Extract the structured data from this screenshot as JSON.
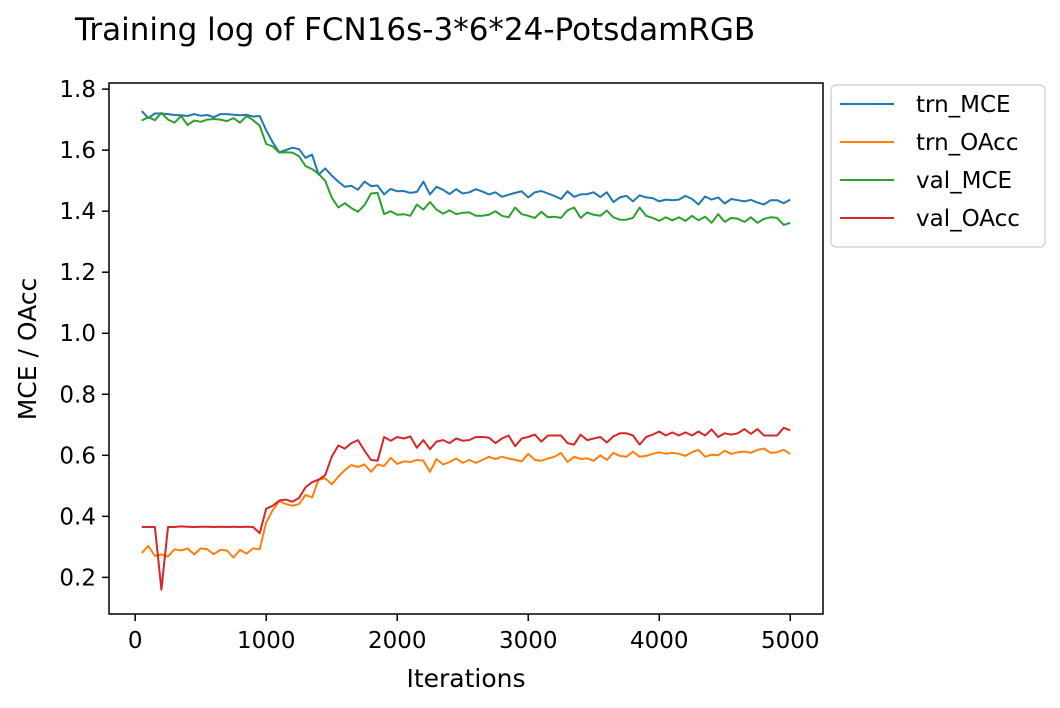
{
  "chart_data": {
    "type": "line",
    "title": "Training log of FCN16s-3*6*24-PotsdamRGB",
    "xlabel": "Iterations",
    "ylabel": "MCE / OAcc",
    "xlim": [
      -200,
      5250
    ],
    "ylim": [
      0.08,
      1.82
    ],
    "xticks": [
      0,
      1000,
      2000,
      3000,
      4000,
      5000
    ],
    "yticks": [
      0.2,
      0.4,
      0.6,
      0.8,
      1.0,
      1.2,
      1.4,
      1.6,
      1.8
    ],
    "grid": false,
    "legend_position": "outside-top-right",
    "x": [
      50,
      100,
      150,
      200,
      250,
      300,
      350,
      400,
      450,
      500,
      550,
      600,
      650,
      700,
      750,
      800,
      850,
      900,
      950,
      1000,
      1050,
      1100,
      1150,
      1200,
      1250,
      1300,
      1350,
      1400,
      1450,
      1500,
      1550,
      1600,
      1650,
      1700,
      1750,
      1800,
      1850,
      1900,
      1950,
      2000,
      2050,
      2100,
      2150,
      2200,
      2250,
      2300,
      2350,
      2400,
      2450,
      2500,
      2550,
      2600,
      2650,
      2700,
      2750,
      2800,
      2850,
      2900,
      2950,
      3000,
      3050,
      3100,
      3150,
      3200,
      3250,
      3300,
      3350,
      3400,
      3450,
      3500,
      3550,
      3600,
      3650,
      3700,
      3750,
      3800,
      3850,
      3900,
      3950,
      4000,
      4050,
      4100,
      4150,
      4200,
      4250,
      4300,
      4350,
      4400,
      4450,
      4500,
      4550,
      4600,
      4650,
      4700,
      4750,
      4800,
      4850,
      4900,
      4950,
      5000
    ],
    "series": [
      {
        "name": "trn_MCE",
        "color": "#1f77b4",
        "values": [
          1.728,
          1.705,
          1.72,
          1.72,
          1.718,
          1.715,
          1.714,
          1.712,
          1.718,
          1.713,
          1.715,
          1.708,
          1.718,
          1.718,
          1.716,
          1.714,
          1.716,
          1.71,
          1.712,
          1.665,
          1.625,
          1.593,
          1.6,
          1.608,
          1.603,
          1.575,
          1.585,
          1.52,
          1.54,
          1.517,
          1.497,
          1.48,
          1.483,
          1.47,
          1.497,
          1.482,
          1.484,
          1.455,
          1.473,
          1.465,
          1.466,
          1.46,
          1.463,
          1.497,
          1.455,
          1.48,
          1.47,
          1.456,
          1.472,
          1.458,
          1.462,
          1.472,
          1.464,
          1.455,
          1.462,
          1.447,
          1.454,
          1.46,
          1.465,
          1.445,
          1.462,
          1.466,
          1.458,
          1.45,
          1.44,
          1.465,
          1.447,
          1.455,
          1.456,
          1.462,
          1.446,
          1.462,
          1.43,
          1.445,
          1.45,
          1.432,
          1.452,
          1.445,
          1.443,
          1.432,
          1.438,
          1.436,
          1.438,
          1.45,
          1.44,
          1.422,
          1.448,
          1.438,
          1.445,
          1.425,
          1.44,
          1.436,
          1.432,
          1.437,
          1.428,
          1.422,
          1.436,
          1.436,
          1.426,
          1.438
        ]
      },
      {
        "name": "trn_OAcc",
        "color": "#ff7f0e",
        "values": [
          0.28,
          0.303,
          0.27,
          0.275,
          0.268,
          0.292,
          0.288,
          0.295,
          0.275,
          0.295,
          0.292,
          0.276,
          0.29,
          0.288,
          0.265,
          0.29,
          0.278,
          0.295,
          0.292,
          0.38,
          0.42,
          0.45,
          0.44,
          0.435,
          0.44,
          0.47,
          0.462,
          0.52,
          0.525,
          0.505,
          0.53,
          0.552,
          0.568,
          0.562,
          0.57,
          0.546,
          0.57,
          0.565,
          0.592,
          0.572,
          0.58,
          0.578,
          0.585,
          0.582,
          0.546,
          0.588,
          0.57,
          0.578,
          0.59,
          0.575,
          0.585,
          0.575,
          0.585,
          0.595,
          0.588,
          0.595,
          0.59,
          0.585,
          0.58,
          0.605,
          0.585,
          0.582,
          0.59,
          0.595,
          0.608,
          0.578,
          0.595,
          0.588,
          0.59,
          0.582,
          0.6,
          0.585,
          0.608,
          0.598,
          0.595,
          0.612,
          0.595,
          0.598,
          0.605,
          0.61,
          0.605,
          0.608,
          0.605,
          0.598,
          0.61,
          0.618,
          0.595,
          0.602,
          0.6,
          0.615,
          0.605,
          0.61,
          0.612,
          0.608,
          0.618,
          0.622,
          0.608,
          0.61,
          0.618,
          0.605
        ]
      },
      {
        "name": "val_MCE",
        "color": "#2ca02c",
        "values": [
          1.697,
          1.708,
          1.698,
          1.722,
          1.7,
          1.69,
          1.712,
          1.682,
          1.697,
          1.693,
          1.7,
          1.702,
          1.7,
          1.695,
          1.705,
          1.69,
          1.712,
          1.698,
          1.68,
          1.62,
          1.612,
          1.592,
          1.593,
          1.592,
          1.58,
          1.548,
          1.538,
          1.522,
          1.5,
          1.445,
          1.412,
          1.426,
          1.41,
          1.398,
          1.42,
          1.458,
          1.46,
          1.39,
          1.4,
          1.388,
          1.39,
          1.385,
          1.422,
          1.405,
          1.43,
          1.405,
          1.392,
          1.403,
          1.39,
          1.395,
          1.396,
          1.385,
          1.385,
          1.388,
          1.4,
          1.385,
          1.38,
          1.412,
          1.39,
          1.385,
          1.378,
          1.398,
          1.38,
          1.382,
          1.378,
          1.403,
          1.412,
          1.378,
          1.396,
          1.388,
          1.385,
          1.402,
          1.38,
          1.372,
          1.372,
          1.378,
          1.412,
          1.385,
          1.378,
          1.368,
          1.38,
          1.37,
          1.38,
          1.368,
          1.385,
          1.37,
          1.382,
          1.362,
          1.39,
          1.365,
          1.378,
          1.375,
          1.365,
          1.38,
          1.362,
          1.375,
          1.38,
          1.378,
          1.355,
          1.362
        ]
      },
      {
        "name": "val_OAcc",
        "color": "#d62728",
        "values": [
          0.365,
          0.365,
          0.365,
          0.16,
          0.365,
          0.365,
          0.367,
          0.366,
          0.365,
          0.366,
          0.366,
          0.365,
          0.366,
          0.365,
          0.366,
          0.365,
          0.366,
          0.365,
          0.345,
          0.425,
          0.435,
          0.452,
          0.455,
          0.448,
          0.46,
          0.495,
          0.512,
          0.52,
          0.535,
          0.595,
          0.632,
          0.622,
          0.64,
          0.65,
          0.615,
          0.585,
          0.582,
          0.66,
          0.648,
          0.66,
          0.655,
          0.662,
          0.625,
          0.65,
          0.62,
          0.645,
          0.65,
          0.64,
          0.655,
          0.648,
          0.65,
          0.66,
          0.66,
          0.658,
          0.64,
          0.655,
          0.665,
          0.63,
          0.655,
          0.66,
          0.668,
          0.645,
          0.665,
          0.665,
          0.665,
          0.64,
          0.635,
          0.668,
          0.65,
          0.655,
          0.66,
          0.642,
          0.662,
          0.672,
          0.672,
          0.665,
          0.635,
          0.66,
          0.668,
          0.678,
          0.665,
          0.675,
          0.665,
          0.675,
          0.665,
          0.678,
          0.665,
          0.685,
          0.66,
          0.672,
          0.668,
          0.672,
          0.686,
          0.67,
          0.686,
          0.665,
          0.665,
          0.665,
          0.69,
          0.682
        ]
      }
    ]
  }
}
